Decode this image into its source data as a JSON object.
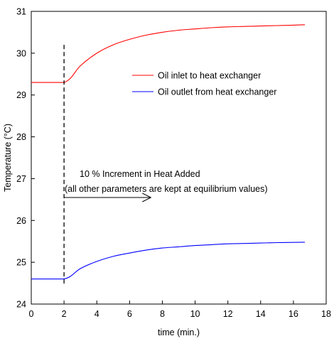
{
  "chart_data": {
    "type": "line",
    "xlabel": "time (min.)",
    "ylabel": "Temperature (°C)",
    "xlim": [
      0,
      18
    ],
    "ylim": [
      24,
      31
    ],
    "x_ticks": [
      0,
      2,
      4,
      6,
      8,
      10,
      12,
      14,
      16,
      18
    ],
    "y_ticks": [
      24,
      25,
      26,
      27,
      28,
      29,
      30,
      31
    ],
    "grid": false,
    "legend_position": "upper-right",
    "series": [
      {
        "name": "Oil inlet to heat exchanger",
        "color": "#ff0000",
        "x": [
          0,
          2,
          3,
          4,
          5,
          6,
          7,
          8,
          9,
          10,
          11,
          12,
          13,
          14,
          15,
          16,
          16.7
        ],
        "y": [
          29.3,
          29.3,
          29.7,
          30.0,
          30.2,
          30.33,
          30.43,
          30.5,
          30.55,
          30.58,
          30.61,
          30.63,
          30.64,
          30.65,
          30.66,
          30.67,
          30.68
        ]
      },
      {
        "name": "Oil outlet from heat exchanger",
        "color": "#0000ff",
        "x": [
          0,
          2,
          3,
          4,
          5,
          6,
          7,
          8,
          9,
          10,
          11,
          12,
          13,
          14,
          15,
          16,
          16.7
        ],
        "y": [
          24.6,
          24.6,
          24.85,
          25.02,
          25.14,
          25.22,
          25.29,
          25.34,
          25.37,
          25.4,
          25.42,
          25.44,
          25.45,
          25.46,
          25.47,
          25.475,
          25.48
        ]
      }
    ],
    "annotations": {
      "event_x": 2,
      "event_line_style": "dashed",
      "line1": "10 % Increment in Heat Added",
      "line2": "(all other parameters are kept at equilibrium values)",
      "arrow_direction": "right"
    }
  }
}
